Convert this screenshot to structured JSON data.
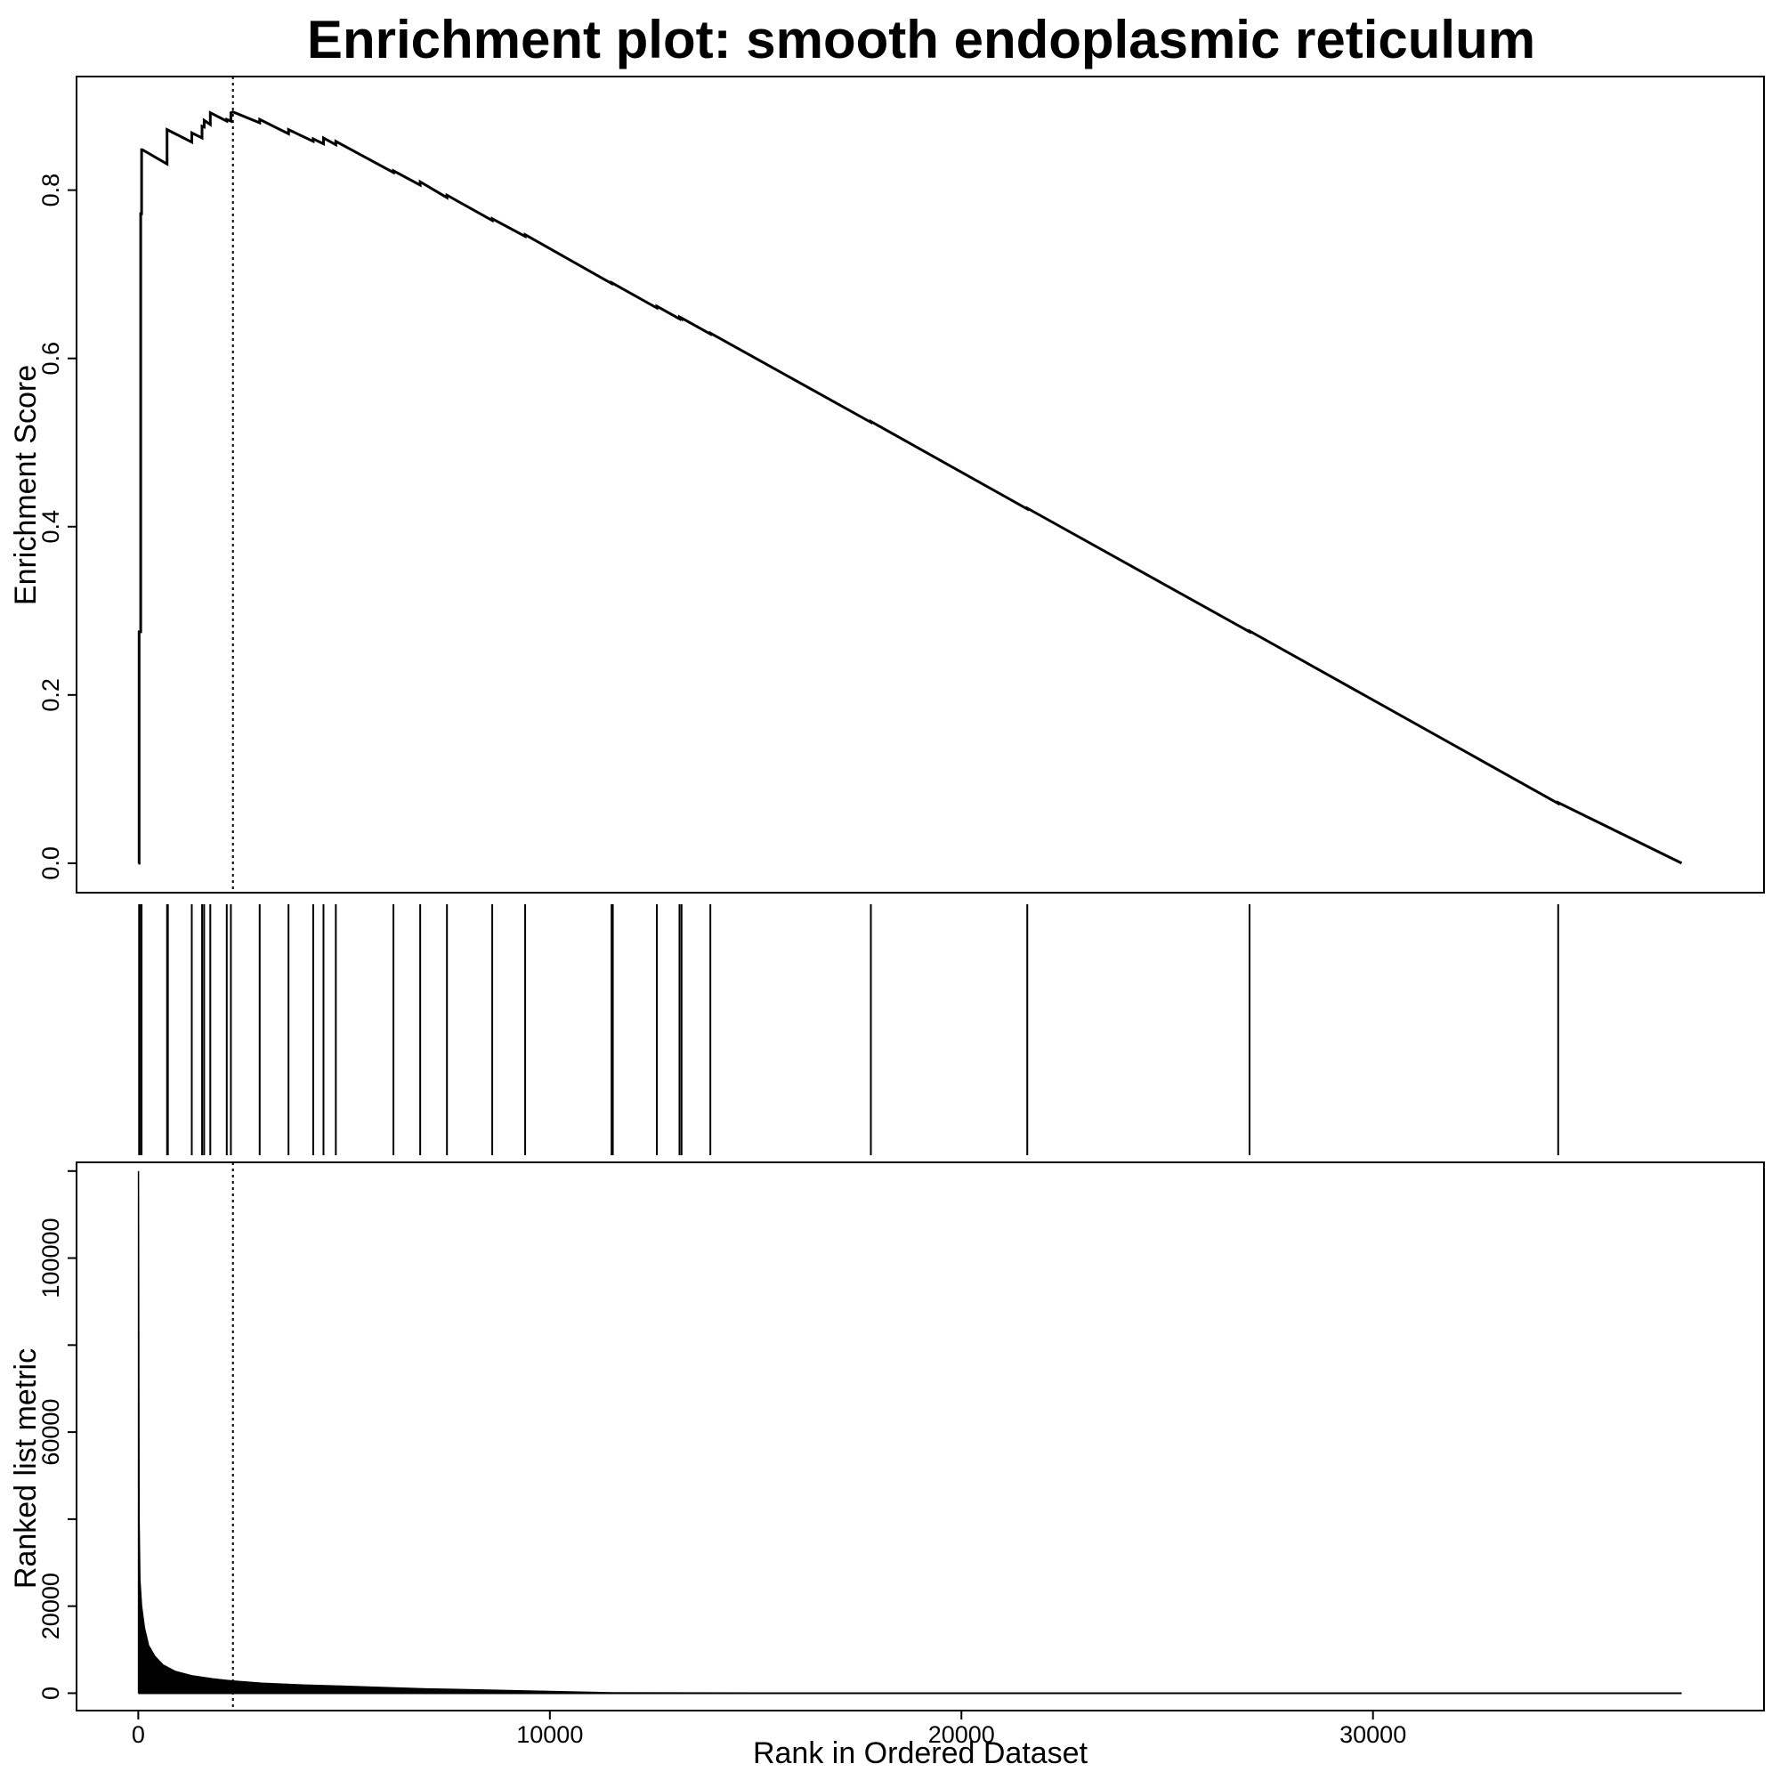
{
  "chart_data": [
    {
      "type": "line",
      "title": "Enrichment plot: smooth endoplasmic reticulum",
      "ylabel": "Enrichment Score",
      "xlim": [
        -1500,
        39500
      ],
      "ylim": [
        -0.035,
        0.935
      ],
      "yticks": [
        "0.0",
        "0.2",
        "0.4",
        "0.6",
        "0.8"
      ],
      "ytick_values": [
        0,
        0.2,
        0.4,
        0.6,
        0.8
      ],
      "peak_rank": 2300,
      "series": [
        {
          "x": [
            0,
            20,
            20,
            60,
            60,
            80,
            80,
            100,
            700,
            700,
            1300,
            1300,
            1550,
            1550,
            1600,
            1600,
            1750,
            1750,
            2150,
            2150,
            2250,
            2250,
            2300,
            2950,
            2950,
            3650,
            3650,
            4250,
            4250,
            4500,
            4500,
            4800,
            4800,
            6200,
            6200,
            6850,
            6850,
            7500,
            7500,
            8600,
            8600,
            9400,
            9400,
            11500,
            11500,
            12600,
            12600,
            13150,
            13150,
            13200,
            13200,
            13900,
            13900,
            17800,
            17800,
            21600,
            21600,
            27000,
            27000,
            34500,
            34500,
            37500
          ],
          "y": [
            0,
            0,
            0.275,
            0.275,
            0.772,
            0.772,
            0.848,
            0.848,
            0.831,
            0.872,
            0.857,
            0.868,
            0.862,
            0.876,
            0.875,
            0.883,
            0.878,
            0.892,
            0.882,
            0.884,
            0.882,
            0.892,
            0.893,
            0.88,
            0.884,
            0.867,
            0.872,
            0.858,
            0.861,
            0.855,
            0.862,
            0.854,
            0.858,
            0.821,
            0.823,
            0.806,
            0.81,
            0.791,
            0.794,
            0.764,
            0.766,
            0.745,
            0.747,
            0.689,
            0.69,
            0.66,
            0.662,
            0.647,
            0.649,
            0.647,
            0.648,
            0.629,
            0.63,
            0.524,
            0.525,
            0.421,
            0.422,
            0.275,
            0.276,
            0.071,
            0.072,
            0
          ]
        }
      ]
    },
    {
      "type": "barcode",
      "hits": [
        20,
        60,
        80,
        700,
        720,
        1300,
        1550,
        1600,
        1750,
        2150,
        2250,
        2950,
        3650,
        4250,
        4500,
        4800,
        6200,
        6850,
        7500,
        8600,
        9400,
        11500,
        11530,
        12600,
        13150,
        13200,
        13900,
        17800,
        21600,
        27000,
        34500
      ]
    },
    {
      "type": "area",
      "ylabel": "Ranked list metric",
      "xlabel": "Rank in Ordered Dataset",
      "xlim": [
        -1500,
        39500
      ],
      "ylim": [
        -4000,
        122000
      ],
      "yticks": [
        "0",
        "20000",
        "60000",
        "100000"
      ],
      "ytick_values": [
        0,
        20000,
        60000,
        100000
      ],
      "xticks": [
        "0",
        "10000",
        "20000",
        "30000"
      ],
      "xtick_values": [
        0,
        10000,
        20000,
        30000
      ],
      "yminor_ticks": [
        0,
        20000,
        40000,
        60000,
        80000,
        100000,
        120000
      ],
      "peak_rank": 2300,
      "series": [
        {
          "x": [
            0,
            5,
            5,
            20,
            40,
            80,
            150,
            250,
            400,
            600,
            900,
            1300,
            1800,
            2300,
            3000,
            4000,
            5000,
            6000,
            7000,
            8000,
            9000,
            10000,
            11000,
            11500,
            15000,
            20000,
            30000,
            37500
          ],
          "y": [
            0,
            0,
            120000,
            40000,
            26000,
            20000,
            15000,
            11000,
            8500,
            6500,
            5000,
            4000,
            3300,
            2800,
            2300,
            1900,
            1600,
            1300,
            1000,
            800,
            600,
            400,
            200,
            100,
            50,
            20,
            5,
            0
          ]
        }
      ]
    }
  ]
}
